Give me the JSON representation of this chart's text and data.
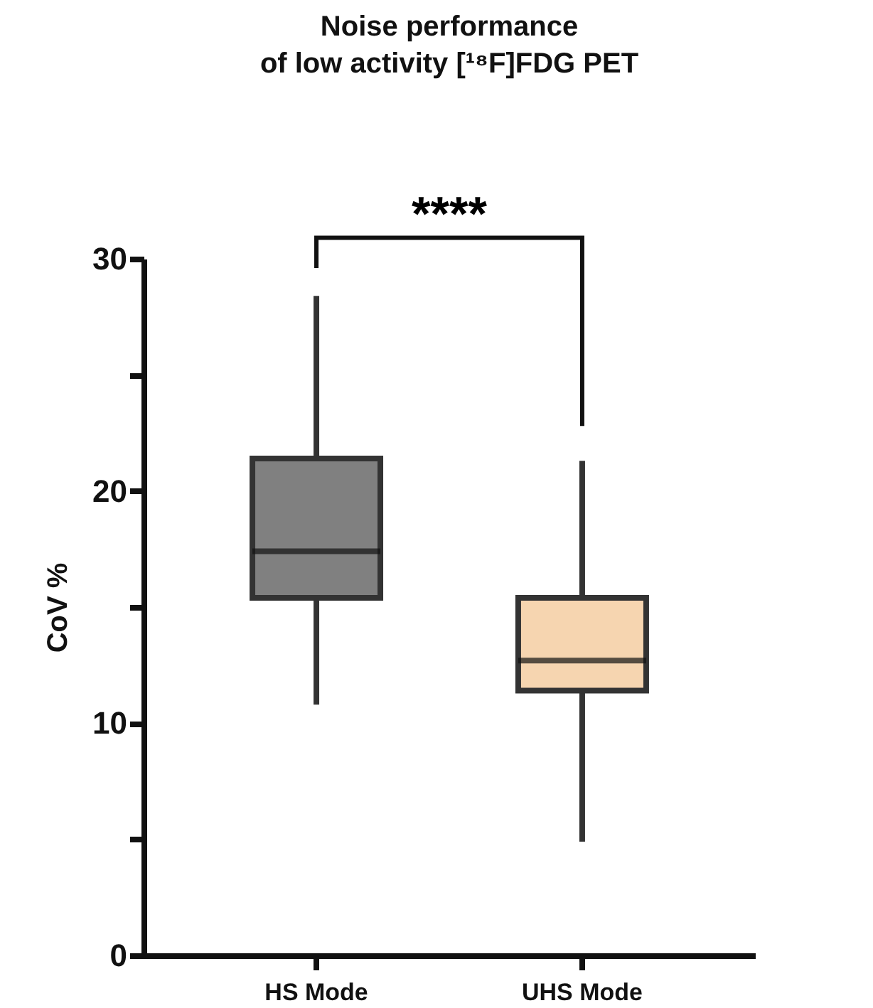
{
  "chart_data": {
    "type": "box",
    "title": [
      "Noise performance",
      "of low activity [¹⁸F]FDG PET"
    ],
    "ylabel": "CoV %",
    "categories": [
      "HS Mode",
      "UHS Mode"
    ],
    "boxes": [
      {
        "low": 10.8,
        "q1": 15.4,
        "median": 17.4,
        "q3": 21.4,
        "high": 28.4
      },
      {
        "low": 4.9,
        "q1": 11.4,
        "median": 12.7,
        "q3": 15.4,
        "high": 21.3
      }
    ],
    "colors": [
      "#808080",
      "#f6d5b0"
    ],
    "ylim": [
      0,
      30
    ],
    "yticks": [
      0,
      {
        "value": 5,
        "label": null
      },
      10,
      {
        "value": 15,
        "label": null
      },
      20,
      {
        "value": 25,
        "label": null
      },
      30
    ],
    "annotations": [
      "****"
    ],
    "grid": false
  }
}
